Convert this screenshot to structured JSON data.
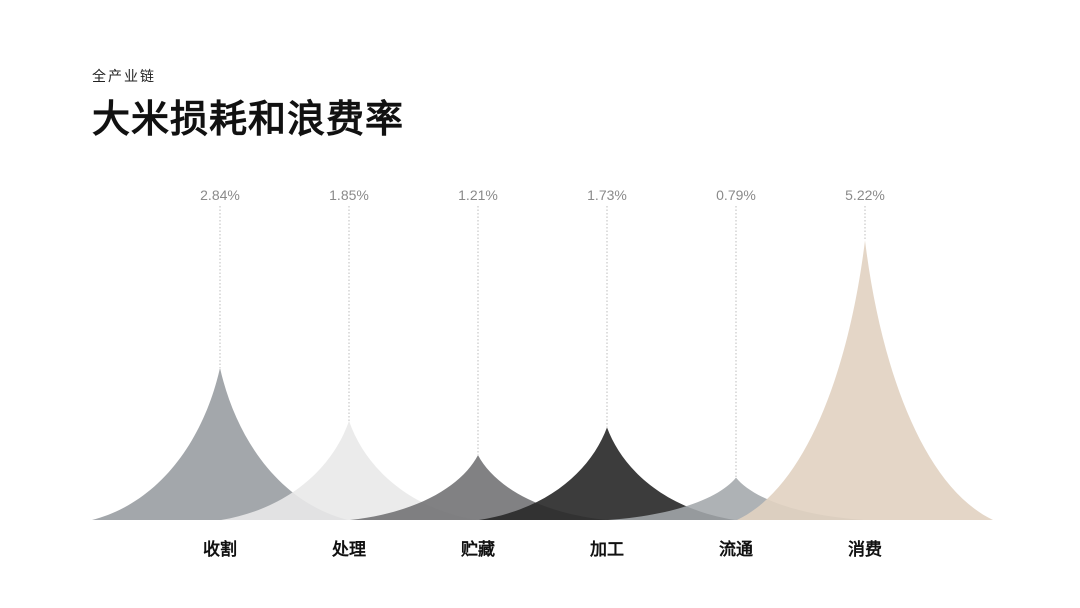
{
  "header": {
    "subtitle": "全产业链",
    "title": "大米损耗和浪费率"
  },
  "chart_data": {
    "type": "area",
    "categories": [
      "收割",
      "处理",
      "贮藏",
      "加工",
      "流通",
      "消费"
    ],
    "values": [
      2.84,
      1.85,
      1.21,
      1.73,
      0.79,
      5.22
    ],
    "value_labels": [
      "2.84%",
      "1.85%",
      "1.21%",
      "1.73%",
      "0.79%",
      "5.22%"
    ],
    "unit": "%",
    "colors": [
      "#a3a7ab",
      "#e9e9e9",
      "#6f7072",
      "#2b2b2b",
      "#a3a7ab",
      "#e1d2c1"
    ],
    "opacities": [
      1,
      0.9,
      0.88,
      0.92,
      0.88,
      0.9
    ],
    "ylim": [
      0,
      5.6
    ],
    "grid": false,
    "legend": "none"
  }
}
